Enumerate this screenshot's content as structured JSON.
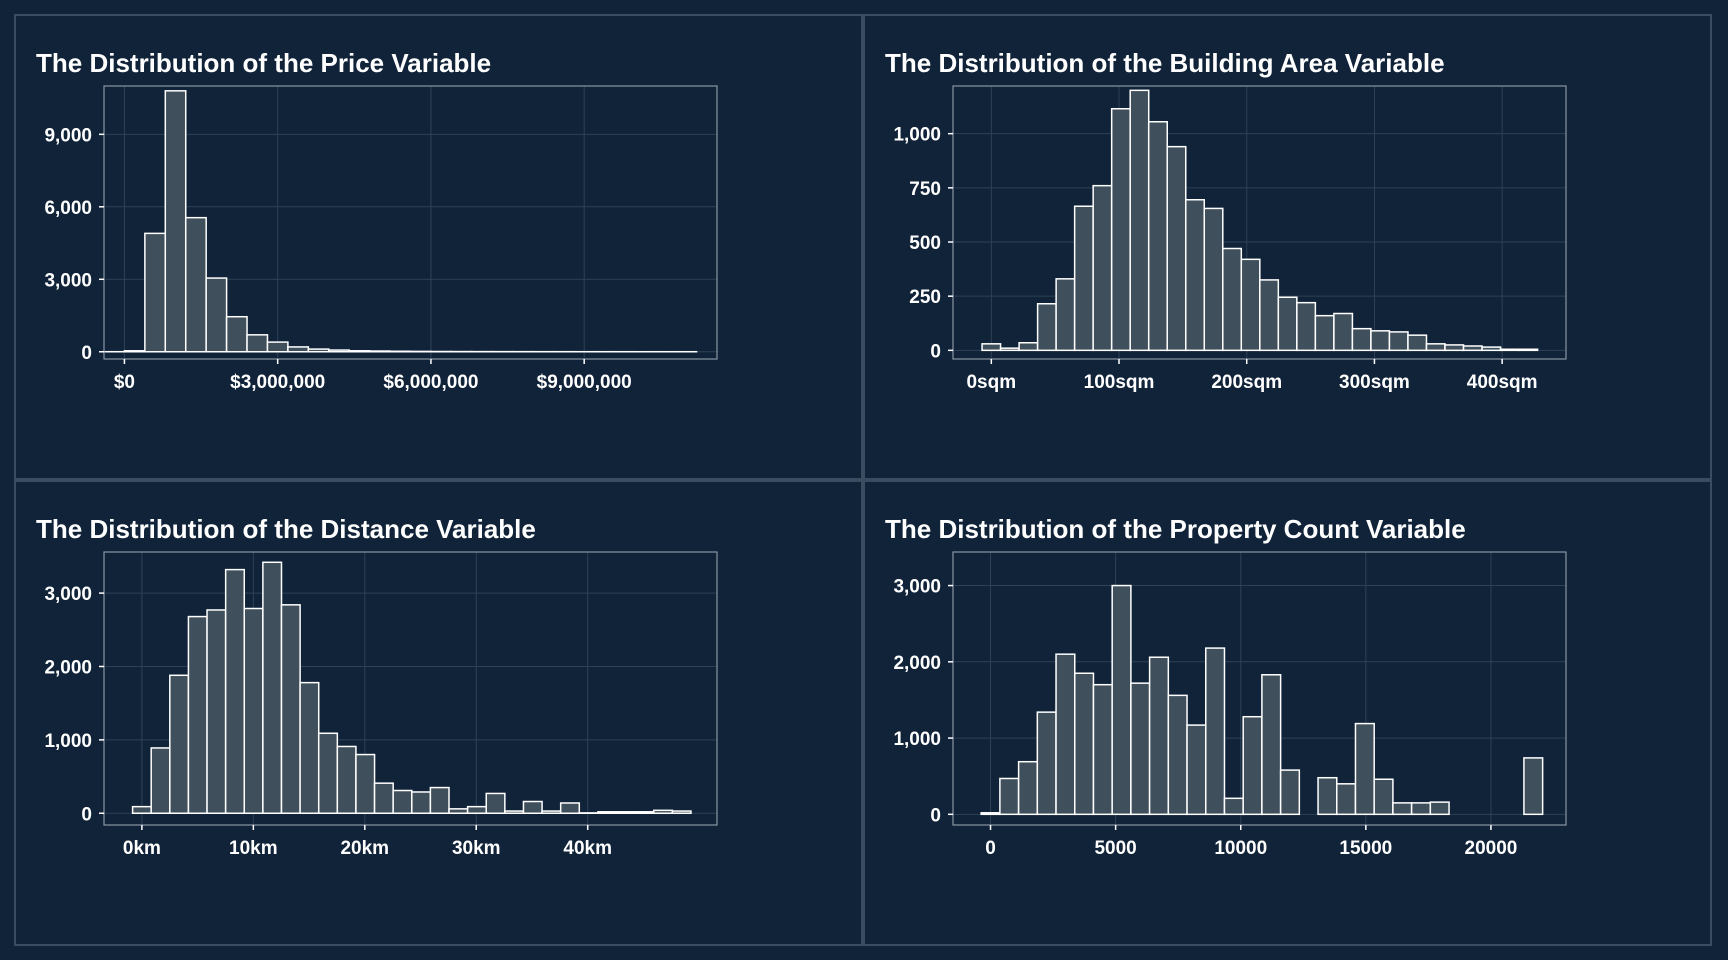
{
  "colors": {
    "background": "#102339",
    "panel_border": "#3a4d60",
    "plot_frame": "#8a97a4",
    "grid": "#2e4256",
    "bar_fill": "#3f4f5c",
    "bar_stroke": "#ffffff",
    "text": "#ffffff"
  },
  "chart_data": [
    {
      "type": "bar",
      "title": "The Distribution of the Price Variable",
      "xlabel": "",
      "ylabel": "",
      "grid": true,
      "legend": "none",
      "xlim": [
        -400000,
        11600000
      ],
      "ylim": [
        -300,
        11000
      ],
      "bin_width": 400000,
      "x_ticks": [
        {
          "value": 0,
          "label": "$0"
        },
        {
          "value": 3000000,
          "label": "$3,000,000"
        },
        {
          "value": 6000000,
          "label": "$6,000,000"
        },
        {
          "value": 9000000,
          "label": "$9,000,000"
        }
      ],
      "y_ticks": [
        {
          "value": 0,
          "label": "0"
        },
        {
          "value": 3000,
          "label": "3,000"
        },
        {
          "value": 6000,
          "label": "6,000"
        },
        {
          "value": 9000,
          "label": "9,000"
        }
      ],
      "bins_x": [
        -200000,
        200000,
        600000,
        1000000,
        1400000,
        1800000,
        2200000,
        2600000,
        3000000,
        3400000,
        3800000,
        4200000,
        4600000,
        5000000,
        5400000,
        5800000,
        6200000,
        6600000,
        7000000,
        7400000,
        7800000,
        8200000,
        8600000,
        9000000,
        9400000,
        9800000,
        10200000,
        10600000,
        11000000
      ],
      "counts": [
        2,
        40,
        4900,
        10800,
        5550,
        3050,
        1450,
        700,
        400,
        200,
        110,
        70,
        40,
        30,
        20,
        15,
        10,
        8,
        6,
        5,
        4,
        3,
        3,
        2,
        2,
        2,
        1,
        1,
        1
      ]
    },
    {
      "type": "bar",
      "title": "The Distribution of the Building Area Variable",
      "xlabel": "",
      "ylabel": "",
      "grid": true,
      "legend": "none",
      "xlim": [
        -30,
        450
      ],
      "ylim": [
        -40,
        1220
      ],
      "bin_width": 14.5,
      "x_ticks": [
        {
          "value": 0,
          "label": "0sqm"
        },
        {
          "value": 100,
          "label": "100sqm"
        },
        {
          "value": 200,
          "label": "200sqm"
        },
        {
          "value": 300,
          "label": "300sqm"
        },
        {
          "value": 400,
          "label": "400sqm"
        }
      ],
      "y_ticks": [
        {
          "value": 0,
          "label": "0"
        },
        {
          "value": 250,
          "label": "250"
        },
        {
          "value": 500,
          "label": "500"
        },
        {
          "value": 750,
          "label": "750"
        },
        {
          "value": 1000,
          "label": "1,000"
        }
      ],
      "bins_x": [
        0,
        14.5,
        29,
        43.5,
        58,
        72.5,
        87,
        101.5,
        116,
        130.5,
        145,
        159.5,
        174,
        188.5,
        203,
        217.5,
        232,
        246.5,
        261,
        275.5,
        290,
        304.5,
        319,
        333.5,
        348,
        362.5,
        377,
        391.5,
        406,
        420.5
      ],
      "counts": [
        30,
        10,
        35,
        215,
        330,
        665,
        760,
        1115,
        1200,
        1055,
        940,
        695,
        655,
        470,
        420,
        325,
        245,
        220,
        160,
        170,
        100,
        90,
        85,
        70,
        30,
        25,
        20,
        15,
        5,
        5
      ]
    },
    {
      "type": "bar",
      "title": "The Distribution of the Distance Variable",
      "xlabel": "",
      "ylabel": "",
      "grid": true,
      "legend": "none",
      "xlim": [
        -3.4,
        51.6
      ],
      "ylim": [
        -160,
        3560
      ],
      "bin_width": 1.67,
      "x_ticks": [
        {
          "value": 0,
          "label": "0km"
        },
        {
          "value": 10,
          "label": "10km"
        },
        {
          "value": 20,
          "label": "20km"
        },
        {
          "value": 30,
          "label": "30km"
        },
        {
          "value": 40,
          "label": "40km"
        }
      ],
      "y_ticks": [
        {
          "value": 0,
          "label": "0"
        },
        {
          "value": 1000,
          "label": "1,000"
        },
        {
          "value": 2000,
          "label": "2,000"
        },
        {
          "value": 3000,
          "label": "3,000"
        }
      ],
      "bins_x": [
        0,
        1.67,
        3.34,
        5.01,
        6.68,
        8.35,
        10.02,
        11.69,
        13.36,
        15.03,
        16.7,
        18.37,
        20.04,
        21.71,
        23.38,
        25.05,
        26.72,
        28.39,
        30.06,
        31.73,
        33.4,
        35.07,
        36.74,
        38.41,
        40.08,
        41.75,
        43.42,
        45.09,
        46.76,
        48.43
      ],
      "counts": [
        90,
        890,
        1880,
        2680,
        2770,
        3320,
        2790,
        3420,
        2840,
        1780,
        1090,
        910,
        800,
        410,
        310,
        290,
        350,
        60,
        90,
        270,
        30,
        160,
        30,
        140,
        5,
        20,
        20,
        20,
        40,
        30
      ]
    },
    {
      "type": "bar",
      "title": "The Distribution of the Property Count Variable",
      "xlabel": "",
      "ylabel": "",
      "grid": true,
      "legend": "none",
      "xlim": [
        -1500,
        23000
      ],
      "ylim": [
        -140,
        3440
      ],
      "bin_width": 748,
      "x_ticks": [
        {
          "value": 0,
          "label": "0"
        },
        {
          "value": 5000,
          "label": "5000"
        },
        {
          "value": 10000,
          "label": "10000"
        },
        {
          "value": 15000,
          "label": "15000"
        },
        {
          "value": 20000,
          "label": "20000"
        }
      ],
      "y_ticks": [
        {
          "value": 0,
          "label": "0"
        },
        {
          "value": 1000,
          "label": "1,000"
        },
        {
          "value": 2000,
          "label": "2,000"
        },
        {
          "value": 3000,
          "label": "3,000"
        }
      ],
      "bins_x": [
        0,
        748,
        1496,
        2244,
        2992,
        3740,
        4488,
        5236,
        5984,
        6732,
        7480,
        8228,
        8976,
        9724,
        10472,
        11220,
        11968,
        12716,
        13464,
        14212,
        14960,
        15708,
        16456,
        17204,
        17952,
        18700,
        19448,
        20196,
        20944,
        21692
      ],
      "counts": [
        20,
        470,
        690,
        1340,
        2100,
        1850,
        1700,
        3000,
        1720,
        2060,
        1560,
        1170,
        2180,
        210,
        1280,
        1830,
        580,
        0,
        480,
        400,
        1190,
        460,
        150,
        150,
        160,
        0,
        0,
        0,
        0,
        740
      ]
    }
  ]
}
